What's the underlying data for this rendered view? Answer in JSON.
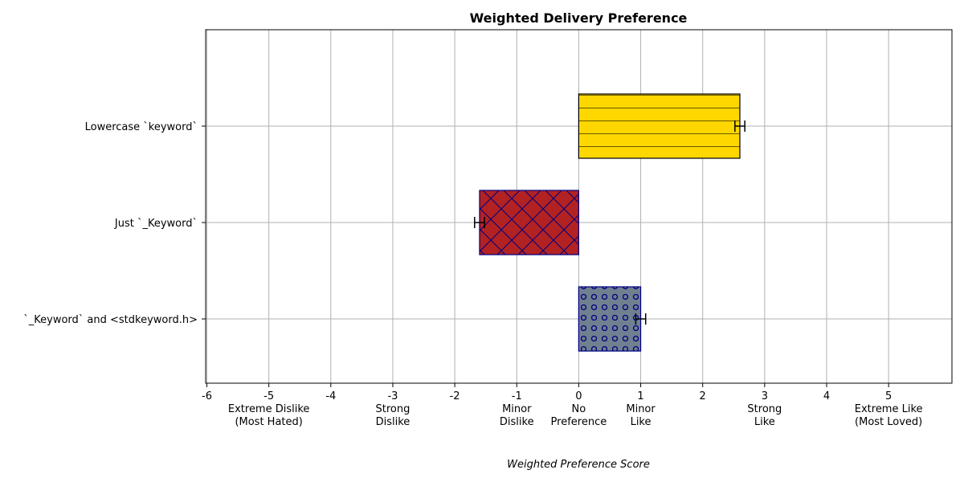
{
  "chart_data": {
    "type": "bar",
    "orientation": "horizontal",
    "title": "Weighted Delivery Preference",
    "xlabel": "Weighted Preference Score",
    "ylabel": "",
    "xlim": [
      -6,
      6
    ],
    "grid": true,
    "x_ticks": [
      {
        "value": -6,
        "label": "-6",
        "desc": ""
      },
      {
        "value": -5,
        "label": "-5",
        "desc": "Extreme Dislike\n(Most Hated)"
      },
      {
        "value": -4,
        "label": "-4",
        "desc": ""
      },
      {
        "value": -3,
        "label": "-3",
        "desc": "Strong\nDislike"
      },
      {
        "value": -2,
        "label": "-2",
        "desc": ""
      },
      {
        "value": -1,
        "label": "-1",
        "desc": "Minor\nDislike"
      },
      {
        "value": 0,
        "label": "0",
        "desc": "No\nPreference"
      },
      {
        "value": 1,
        "label": "1",
        "desc": "Minor\nLike"
      },
      {
        "value": 2,
        "label": "2",
        "desc": ""
      },
      {
        "value": 3,
        "label": "3",
        "desc": "Strong\nLike"
      },
      {
        "value": 4,
        "label": "4",
        "desc": ""
      },
      {
        "value": 5,
        "label": "5",
        "desc": "Extreme Like\n(Most Loved)"
      }
    ],
    "bars": [
      {
        "category": "Lowercase `keyword`",
        "value": 2.6,
        "error": 0.08,
        "color": "#FFD700",
        "edge": "#000000",
        "hatch": "horizontal-lines"
      },
      {
        "category": "Just `_Keyword`",
        "value": -1.6,
        "error": 0.08,
        "color": "#B22222",
        "edge": "#000080",
        "hatch": "crosshatch"
      },
      {
        "category": "`_Keyword` and <stdkeyword.h>",
        "value": 1.0,
        "error": 0.08,
        "color": "#708090",
        "edge": "#000080",
        "hatch": "circles"
      }
    ]
  }
}
